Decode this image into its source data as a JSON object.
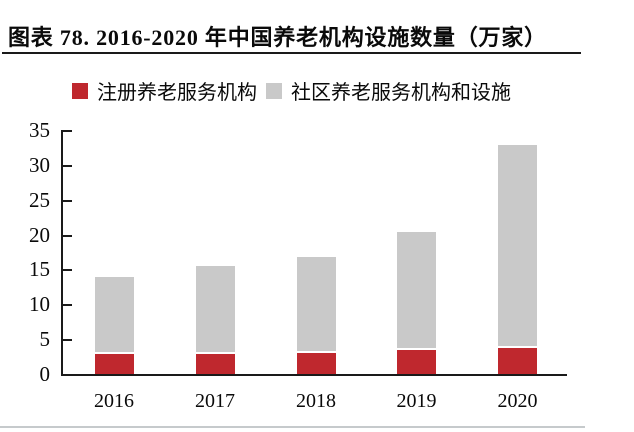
{
  "figure": {
    "title": "图表 78. 2016-2020 年中国养老机构设施数量（万家）"
  },
  "chart_data": {
    "type": "bar",
    "stacked": true,
    "title": "2016-2020 年中国养老机构设施数量（万家）",
    "unit": "万家",
    "categories": [
      "2016",
      "2017",
      "2018",
      "2019",
      "2020"
    ],
    "series": [
      {
        "name": "注册养老服务机构",
        "color": "#bf282e",
        "values": [
          2.8,
          2.9,
          3.0,
          3.4,
          3.8
        ]
      },
      {
        "name": "社区养老服务机构和设施",
        "color": "#c9c9c9",
        "values": [
          11.1,
          12.6,
          13.8,
          17.0,
          29.1
        ]
      }
    ],
    "totals": [
      13.9,
      15.5,
      16.8,
      20.4,
      32.9
    ],
    "xlabel": "",
    "ylabel": "",
    "ylim": [
      0,
      35
    ],
    "yticks": [
      0,
      5,
      10,
      15,
      20,
      25,
      30,
      35
    ],
    "grid": false,
    "legend_position": "top-left"
  },
  "colors": {
    "axis": "#1a1a1a",
    "title_rule": "#1a1a1a",
    "page_bottom_rule": "#c6cacc",
    "background": "#ffffff"
  }
}
